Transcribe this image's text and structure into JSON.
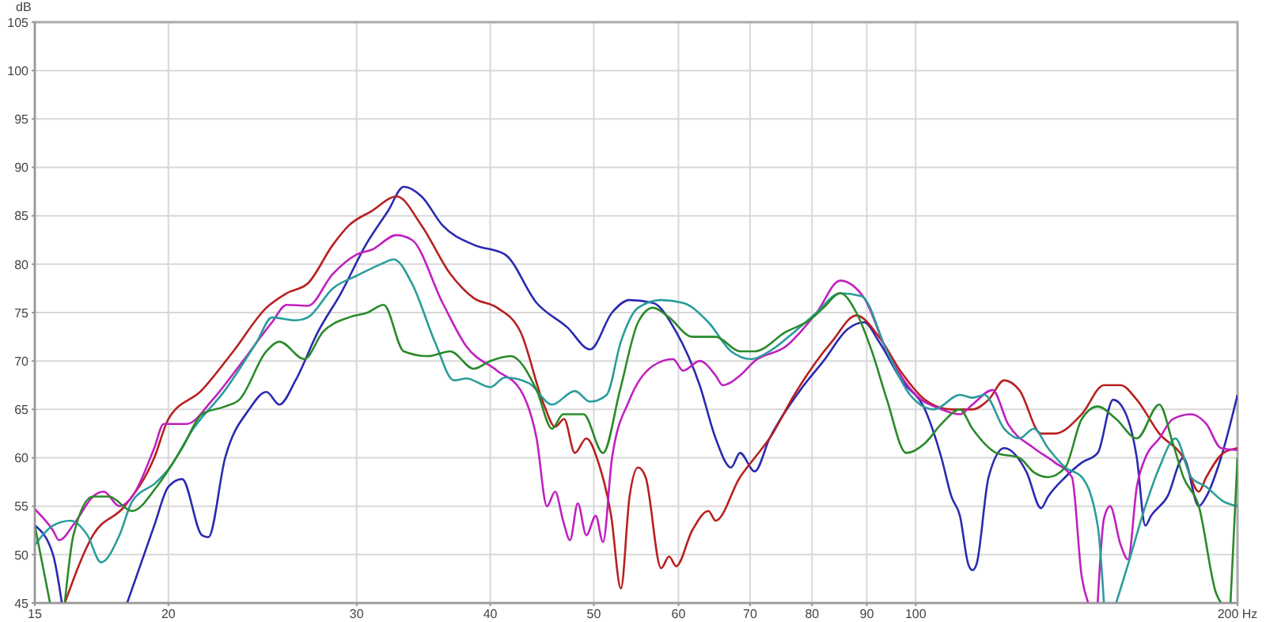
{
  "chart_data": {
    "type": "line",
    "ylabel": "dB",
    "log": "x",
    "grid": true,
    "marker": "none",
    "line_style": "solid",
    "xlim": [
      15,
      200
    ],
    "xticks": [
      15,
      20,
      30,
      40,
      50,
      60,
      70,
      80,
      90,
      100,
      {
        "value": 200,
        "label": "200 Hz"
      }
    ],
    "ylim": [
      45,
      105
    ],
    "yticks": [
      45,
      50,
      55,
      60,
      65,
      70,
      75,
      80,
      85,
      90,
      95,
      100,
      105
    ],
    "series": [
      {
        "color": "#2a2ab0",
        "x": [
          15,
          15.6,
          15.9,
          16.1,
          18.3,
          19.4,
          20,
          20.6,
          21.5,
          21.8,
          22.6,
          23.8,
          24.7,
          25.4,
          26.3,
          27.6,
          29,
          30.6,
          32.1,
          33.2,
          34.5,
          36.1,
          38.6,
          41.3,
          44.2,
          47.2,
          49.6,
          52,
          54,
          56.8,
          59.7,
          62.8,
          65,
          67.2,
          68.5,
          70.7,
          73,
          78,
          82,
          86.4,
          89.5,
          92.4,
          97,
          102,
          105.7,
          108,
          110,
          112,
          113,
          114,
          117,
          121,
          127,
          131,
          133,
          138,
          143,
          148,
          153,
          155.5,
          161,
          164,
          166,
          172,
          178,
          184,
          187,
          193,
          200
        ],
        "values": [
          53,
          50,
          45,
          null,
          45,
          53,
          57,
          57.8,
          52,
          51.8,
          60,
          65,
          66.8,
          65.5,
          68,
          73,
          77,
          82,
          85.5,
          88,
          87,
          84,
          82,
          81,
          76,
          73.5,
          71.2,
          75,
          76.3,
          76,
          73,
          67.5,
          62,
          59,
          60.5,
          58.6,
          62,
          67,
          70,
          73.3,
          74,
          72,
          68,
          65,
          60,
          56,
          54,
          49,
          48.4,
          49,
          58,
          61,
          58.5,
          54.8,
          56,
          58,
          59.5,
          60.5,
          66,
          65.5,
          60,
          53,
          54,
          56,
          60,
          55,
          56,
          60,
          66.5
        ]
      },
      {
        "color": "#b82020",
        "x": [
          16,
          17,
          18.2,
          19.4,
          20,
          21.5,
          23,
          24.7,
          25.8,
          27,
          28.5,
          29.5,
          31,
          32.7,
          34.5,
          36.7,
          38.6,
          40.6,
          42.7,
          44.9,
          46,
          46.9,
          48,
          49.2,
          50.5,
          51.9,
          53,
          54,
          55,
          55.9,
          57.8,
          58.8,
          59.7,
          61.8,
          64,
          65,
          68.5,
          70.7,
          73,
          77,
          80.8,
          83.5,
          88,
          92.4,
          97,
          102,
          108,
          113,
          117,
          121,
          125,
          131,
          135,
          143,
          150,
          155.5,
          161,
          169,
          178,
          184,
          187,
          194,
          200
        ],
        "values": [
          45,
          52,
          55,
          60,
          64,
          67,
          71,
          75.5,
          77,
          78,
          82,
          84,
          85.5,
          87,
          84,
          79,
          76.5,
          75.5,
          73,
          65.5,
          63.2,
          64,
          60.5,
          62,
          59.5,
          54,
          46.5,
          56,
          59,
          58,
          48.6,
          49.8,
          48.8,
          52.5,
          54.5,
          53.5,
          58,
          60,
          62,
          66.5,
          70,
          72,
          74.7,
          72.5,
          68.8,
          66,
          65,
          65,
          66,
          68,
          67,
          62.5,
          62.5,
          64.5,
          67.5,
          67.5,
          66,
          62.5,
          60,
          56.5,
          58,
          60.5,
          61
        ]
      },
      {
        "color": "#c020c0",
        "x": [
          15,
          15.6,
          15.8,
          16.4,
          17,
          17.4,
          18,
          18.5,
          19.4,
          19.8,
          20.8,
          22,
          23.3,
          25,
          25.8,
          27,
          28.5,
          30,
          31,
          32.7,
          33.8,
          36.1,
          38,
          40.6,
          42.7,
          44.2,
          45.2,
          46,
          46.8,
          47.5,
          48.3,
          49.2,
          50.2,
          51,
          52,
          54,
          56.8,
          59.3,
          60.6,
          62.8,
          65,
          66,
          68.5,
          70.7,
          75.6,
          80.8,
          85,
          89.5,
          94,
          100,
          105.7,
          110,
          113,
          118,
          122,
          129,
          135,
          140,
          143,
          145,
          146,
          148,
          150,
          152,
          155.5,
          158,
          161,
          164,
          169,
          174,
          181,
          187,
          193,
          200
        ],
        "values": [
          54.7,
          52.5,
          51.5,
          53.5,
          56,
          56.5,
          55,
          56,
          61,
          63.5,
          63.5,
          66,
          69.5,
          74,
          75.8,
          75.7,
          79,
          81,
          81.5,
          83,
          82.5,
          76,
          71.5,
          69,
          67,
          62,
          55,
          56.5,
          53.5,
          51.5,
          55.3,
          52,
          54,
          51.3,
          60,
          66,
          69.5,
          70.2,
          69,
          70,
          68.5,
          67.5,
          68.5,
          70,
          71.5,
          75,
          78.3,
          76.5,
          71,
          66.5,
          65,
          64.5,
          65.5,
          67,
          63.5,
          61,
          59.5,
          58,
          47.7,
          45,
          null,
          45,
          53.7,
          55,
          51,
          49.5,
          57,
          60,
          62,
          64,
          64.5,
          63.5,
          61,
          60.8
        ]
      },
      {
        "color": "#2a9c9c",
        "x": [
          15,
          15.6,
          16.2,
          16.8,
          17.3,
          18,
          18.5,
          19.5,
          20,
          21.1,
          22.6,
          24.2,
          25,
          26.3,
          27,
          28.5,
          30,
          31.6,
          32.5,
          33.8,
          35.5,
          37,
          38,
          40,
          41.3,
          43.5,
          45.7,
          48,
          49.6,
          51.4,
          53,
          55,
          57.8,
          60.6,
          64,
          67.2,
          70.2,
          73,
          77,
          80.8,
          85,
          89,
          94,
          98.8,
          104,
          110,
          113,
          116,
          121,
          125,
          129,
          133,
          138,
          143,
          148,
          150,
          152,
          154,
          158,
          164,
          169,
          175,
          181,
          187,
          194,
          200
        ],
        "values": [
          51,
          53,
          53.5,
          52,
          49.2,
          52,
          55.5,
          57.5,
          58.8,
          63,
          67,
          72,
          74.5,
          74.2,
          74.5,
          77.5,
          78.8,
          80,
          80.5,
          78,
          72,
          68,
          68.2,
          67.3,
          68.3,
          67.7,
          65.5,
          66.9,
          65.8,
          66.5,
          72,
          75.5,
          76.3,
          76,
          74,
          71,
          70.2,
          71,
          73,
          75,
          77,
          76.7,
          71,
          66.5,
          65,
          66.5,
          66.2,
          66.5,
          63,
          62,
          63,
          61,
          59,
          58,
          53,
          45,
          null,
          45,
          49,
          55,
          59,
          62,
          58,
          57,
          55.5,
          55
        ]
      },
      {
        "color": "#2a8a2a",
        "x": [
          15,
          15.5,
          15.8,
          16,
          16.3,
          17,
          17.6,
          18.5,
          19.5,
          20.6,
          21.5,
          22.6,
          23.3,
          24.7,
          25.4,
          26.8,
          27.9,
          29.5,
          30.7,
          31.8,
          33.2,
          35,
          36.7,
          38.6,
          40,
          41.8,
          44.2,
          45.7,
          46.8,
          48.9,
          51,
          52.9,
          55,
          56.8,
          58.8,
          61.8,
          65,
          68.5,
          70.7,
          75.6,
          79.5,
          82,
          85,
          88,
          91,
          94,
          98,
          102,
          105.7,
          110,
          113,
          119,
          125,
          129,
          133,
          138,
          143,
          148,
          154,
          161,
          169,
          174,
          178,
          184,
          191,
          193,
          195,
          197,
          200
        ],
        "values": [
          53,
          45,
          null,
          45,
          52,
          56,
          56,
          54.5,
          57,
          61,
          64.5,
          65.3,
          66,
          71,
          72,
          70.2,
          73,
          74.5,
          75,
          75.8,
          71,
          70.5,
          71,
          69.2,
          70,
          70.5,
          67,
          63,
          64.5,
          64.5,
          60.5,
          67,
          74,
          75.5,
          74.5,
          72.5,
          72.5,
          71,
          71,
          73,
          74.2,
          75.5,
          77,
          75,
          71,
          66,
          60.5,
          61.5,
          63.5,
          65,
          63,
          60.5,
          60,
          58.5,
          58,
          59,
          64,
          65.3,
          64,
          62,
          65.5,
          61.5,
          58,
          55,
          46,
          45,
          null,
          45,
          60
        ]
      }
    ]
  }
}
